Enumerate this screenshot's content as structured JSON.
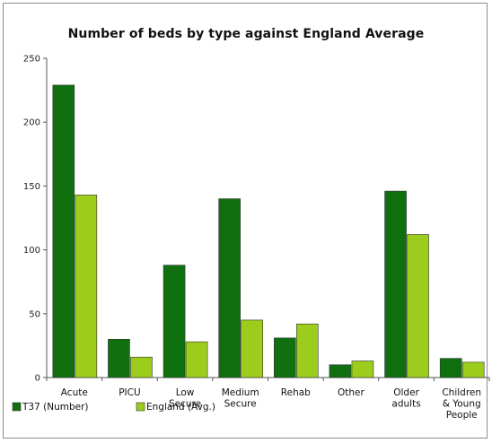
{
  "chart_data": {
    "type": "bar",
    "title": "Number of beds by type against England Average",
    "xlabel": "",
    "ylabel": "",
    "ylim": [
      0,
      250
    ],
    "yticks": [
      0,
      50,
      100,
      150,
      200,
      250
    ],
    "grid": false,
    "legend_position": "bottom-left",
    "categories": [
      [
        "Acute"
      ],
      [
        "PICU"
      ],
      [
        "Low",
        "Secure"
      ],
      [
        "Medium",
        "Secure"
      ],
      [
        "Rehab"
      ],
      [
        "Other"
      ],
      [
        "Older",
        "adults"
      ],
      [
        "Children",
        "& Young",
        "People"
      ]
    ],
    "series": [
      {
        "name": "T37 (Number)",
        "color": "#107010",
        "values": [
          229,
          30,
          88,
          140,
          31,
          10,
          146,
          15
        ]
      },
      {
        "name": "England (Avg.)",
        "color": "#9ccc1c",
        "values": [
          143,
          16,
          28,
          45,
          42,
          13,
          112,
          12
        ]
      }
    ]
  }
}
